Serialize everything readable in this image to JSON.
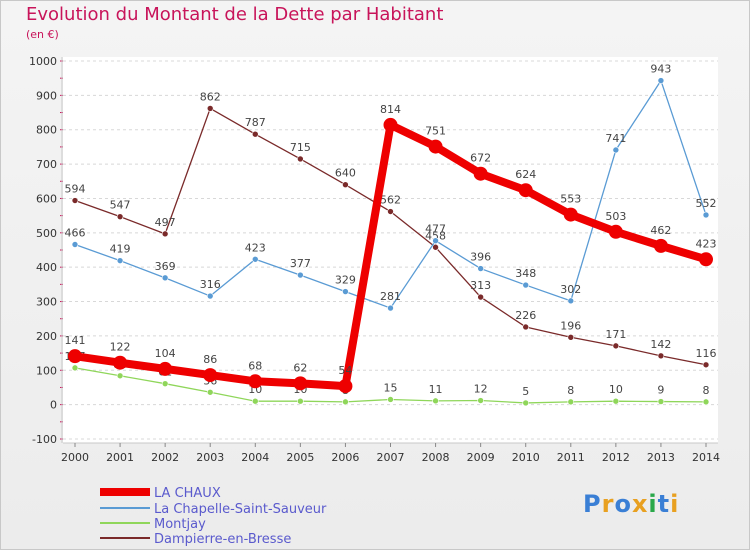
{
  "chart_data": {
    "type": "line",
    "title": "Evolution du Montant de la Dette par Habitant",
    "ylabel": "(en €)",
    "xlabel": "",
    "ylim": [
      -100,
      1000
    ],
    "yticks": [
      -100,
      0,
      100,
      200,
      300,
      400,
      500,
      600,
      700,
      800,
      900,
      1000
    ],
    "categories": [
      "2000",
      "2001",
      "2002",
      "2003",
      "2004",
      "2005",
      "2006",
      "2007",
      "2008",
      "2009",
      "2010",
      "2011",
      "2012",
      "2013",
      "2014"
    ],
    "series": [
      {
        "name": "Dampierre-en-Bresse",
        "color": "#7a2a2a",
        "values": [
          594,
          547,
          497,
          862,
          787,
          715,
          640,
          562,
          458,
          313,
          226,
          196,
          171,
          142,
          116
        ]
      },
      {
        "name": "La Chapelle-Saint-Sauveur",
        "color": "#5a9bd4",
        "values": [
          466,
          419,
          369,
          316,
          423,
          377,
          329,
          281,
          477,
          396,
          348,
          302,
          741,
          943,
          552
        ]
      },
      {
        "name": "Montjay",
        "color": "#8fd65a",
        "values": [
          107,
          84,
          61,
          36,
          10,
          10,
          8,
          15,
          11,
          12,
          5,
          8,
          10,
          9,
          8
        ]
      },
      {
        "name": "LA CHAUX",
        "color": "#ee0000",
        "values": [
          141,
          122,
          104,
          86,
          68,
          62,
          54,
          814,
          751,
          672,
          624,
          553,
          503,
          462,
          423
        ]
      }
    ],
    "legend": [
      "LA CHAUX",
      "La Chapelle-Saint-Sauveur",
      "Montjay",
      "Dampierre-en-Bresse"
    ],
    "legend_position": "bottom-left"
  },
  "branding": {
    "logo_text": "Proxiti"
  }
}
